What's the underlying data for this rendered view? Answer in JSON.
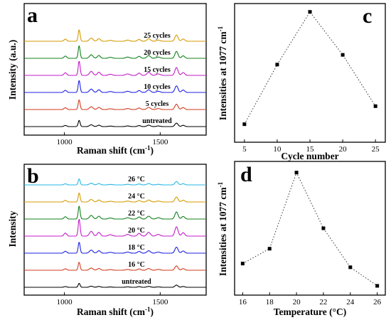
{
  "chart_data": [
    {
      "panel": "a",
      "type": "line",
      "xlabel_main": "Raman shift (cm",
      "xlabel_sup": "-1",
      "xlabel_tail": ")",
      "ylabel": "Intensity (a.u.)",
      "xlim": [
        790,
        1740
      ],
      "xticks": [
        1000,
        1500
      ],
      "series": [
        {
          "name": "untreated",
          "color": "#000000",
          "scale": 0.55
        },
        {
          "name": "5 cycles",
          "color": "#d23c1e",
          "scale": 0.85
        },
        {
          "name": "10 cycles",
          "color": "#1e22e0",
          "scale": 1.05
        },
        {
          "name": "15 cycles",
          "color": "#c21ec8",
          "scale": 1.25
        },
        {
          "name": "20 cycles",
          "color": "#13811e",
          "scale": 1.1
        },
        {
          "name": "25 cycles",
          "color": "#d69b00",
          "scale": 1.0
        }
      ]
    },
    {
      "panel": "b",
      "type": "line",
      "xlabel_main": "Raman shift (cm",
      "xlabel_sup": "-1",
      "xlabel_tail": ")",
      "ylabel": "Intensity",
      "xlim": [
        790,
        1740
      ],
      "xticks": [
        1000,
        1500
      ],
      "series": [
        {
          "name": "untreated",
          "color": "#000000",
          "scale": 0.4
        },
        {
          "name": "16 °C",
          "color": "#d23c1e",
          "scale": 0.8
        },
        {
          "name": "18 °C",
          "color": "#1e22e0",
          "scale": 1.1
        },
        {
          "name": "20 °C",
          "color": "#c21ec8",
          "scale": 1.7
        },
        {
          "name": "22 °C",
          "color": "#13811e",
          "scale": 1.3
        },
        {
          "name": "24 °C",
          "color": "#d69b00",
          "scale": 0.9
        },
        {
          "name": "26 °C",
          "color": "#26b7e6",
          "scale": 0.6
        }
      ]
    },
    {
      "panel": "c",
      "type": "scatter",
      "xlabel": "Cycle number",
      "ylabel": "Intensities at 1077 cm",
      "ylabel_sup": "-1",
      "x": [
        5,
        10,
        15,
        20,
        25
      ],
      "y": [
        0.19,
        0.62,
        1.0,
        0.69,
        0.32
      ],
      "xlim": [
        3.5,
        26.5
      ],
      "ylim": [
        0.06,
        1.06
      ],
      "xticks": [
        5,
        10,
        15,
        20,
        25
      ]
    },
    {
      "panel": "d",
      "type": "scatter",
      "xlabel": "Temperature (°C)",
      "ylabel": "Intensities at 1077 cm",
      "ylabel_sup": "-1",
      "x": [
        16,
        18,
        20,
        22,
        24,
        26
      ],
      "y": [
        0.25,
        0.33,
        0.74,
        0.44,
        0.23,
        0.13
      ],
      "xlim": [
        15.4,
        26.6
      ],
      "ylim": [
        0.08,
        0.8
      ],
      "xticks": [
        16,
        18,
        20,
        22,
        24,
        26
      ]
    }
  ]
}
